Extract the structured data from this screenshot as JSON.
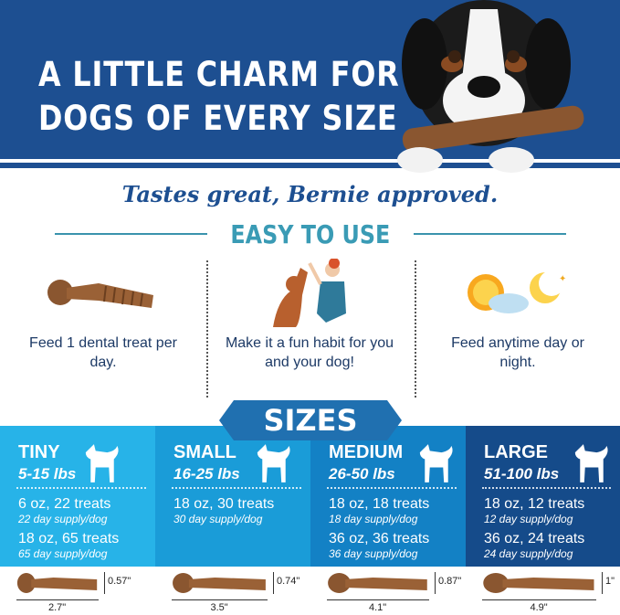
{
  "header": {
    "title_line1": "A LITTLE CHARM FOR",
    "title_line2": "DOGS OF EVERY SIZE",
    "bg_color": "#1d4f91"
  },
  "tagline": "Tastes great, Bernie approved.",
  "easy_to_use": {
    "heading": "EASY TO USE",
    "items": [
      {
        "icon": "dental-treat-icon",
        "text": "Feed 1 dental treat per day."
      },
      {
        "icon": "dog-high-five-icon",
        "text": "Make it a fun habit for you and your dog!"
      },
      {
        "icon": "sun-moon-icon",
        "text": "Feed anytime day or night."
      }
    ]
  },
  "sizes": {
    "heading": "SIZES",
    "columns": [
      {
        "name": "TINY",
        "weight": "5-15 lbs",
        "color": "#27b3e8",
        "packs": [
          {
            "size": "6 oz, 22 treats",
            "supply": "22 day supply/dog"
          },
          {
            "size": "18 oz, 65 treats",
            "supply": "65 day supply/dog"
          }
        ],
        "height": "0.57\"",
        "length": "2.7\""
      },
      {
        "name": "SMALL",
        "weight": "16-25 lbs",
        "color": "#1a9cd8",
        "packs": [
          {
            "size": "18 oz, 30 treats",
            "supply": "30 day supply/dog"
          }
        ],
        "height": "0.74\"",
        "length": "3.5\""
      },
      {
        "name": "MEDIUM",
        "weight": "26-50 lbs",
        "color": "#1381c5",
        "packs": [
          {
            "size": "18 oz, 18 treats",
            "supply": "18 day supply/dog"
          },
          {
            "size": "36 oz, 36 treats",
            "supply": "36 day supply/dog"
          }
        ],
        "height": "0.87\"",
        "length": "4.1\""
      },
      {
        "name": "LARGE",
        "weight": "51-100 lbs",
        "color": "#154b8a",
        "packs": [
          {
            "size": "18 oz, 12 treats",
            "supply": "12 day supply/dog"
          },
          {
            "size": "36 oz, 24 treats",
            "supply": "24 day supply/dog"
          }
        ],
        "height": "1\"",
        "length": "4.9\""
      }
    ]
  }
}
